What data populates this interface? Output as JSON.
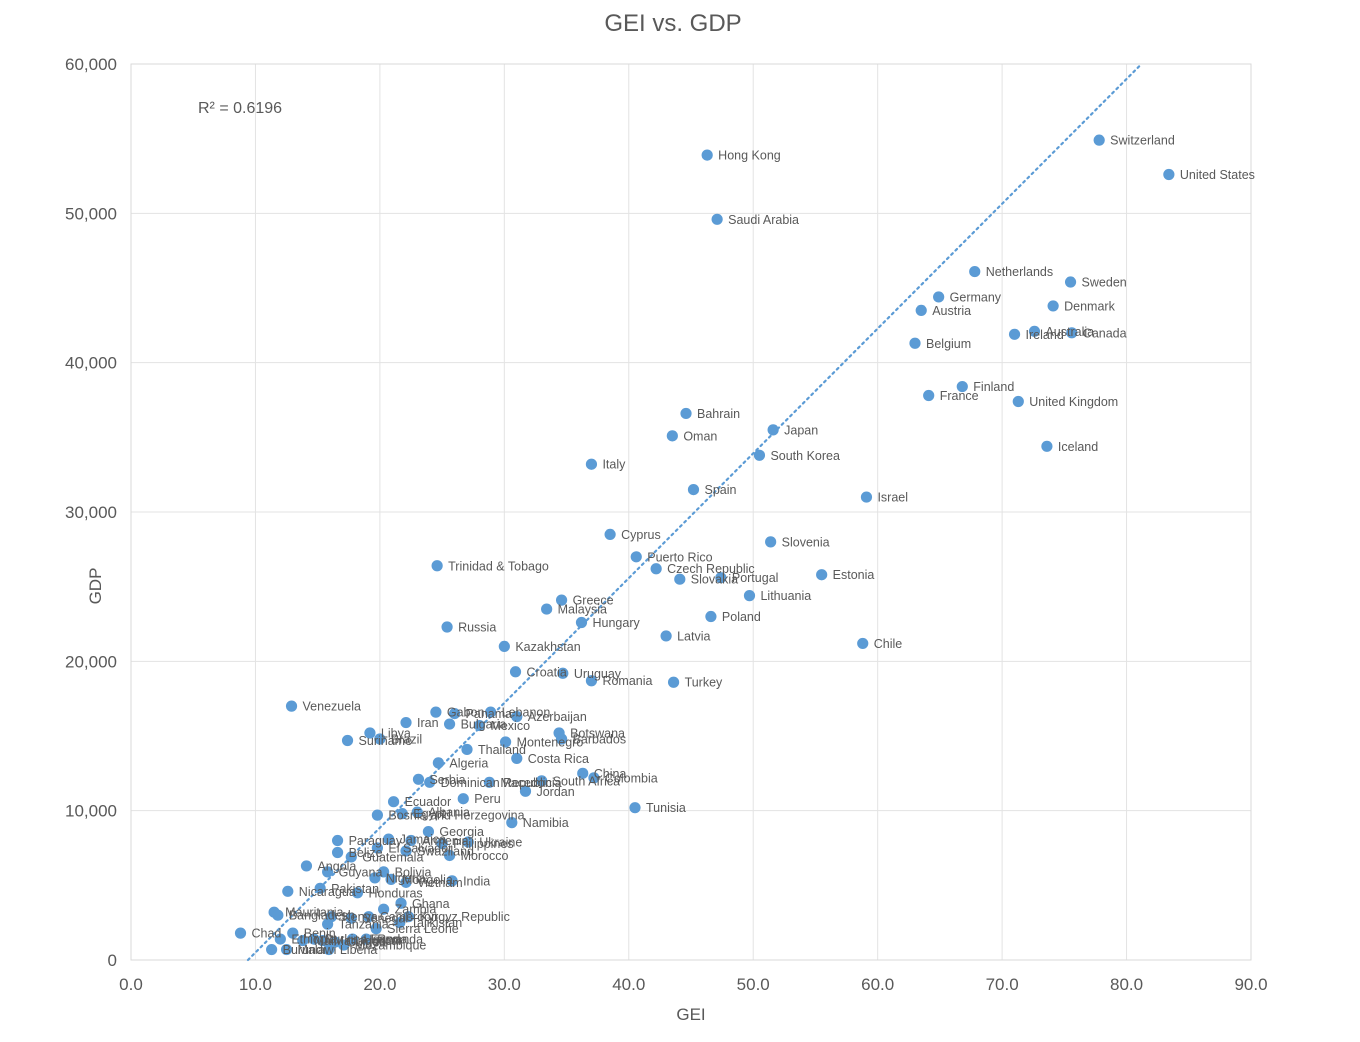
{
  "chart_data": {
    "type": "scatter",
    "title": "GEI vs. GDP",
    "xlabel": "GEI",
    "ylabel": "GDP",
    "xlim": [
      0,
      90
    ],
    "ylim": [
      0,
      60000
    ],
    "x_ticks": [
      "0.0",
      "10.0",
      "20.0",
      "30.0",
      "40.0",
      "50.0",
      "60.0",
      "70.0",
      "80.0",
      "90.0"
    ],
    "y_ticks": [
      "0",
      "10,000",
      "20,000",
      "30,000",
      "40,000",
      "50,000",
      "60,000"
    ],
    "grid": true,
    "r_squared_label": "R² = 0.6196",
    "trendline": {
      "type": "linear",
      "dotted": true,
      "x": [
        9.4,
        81.2
      ],
      "y": [
        0,
        60000
      ]
    },
    "marker_color": "#5b9bd5",
    "points": [
      {
        "label": "Switzerland",
        "x": 77.8,
        "y": 54900
      },
      {
        "label": "United States",
        "x": 83.4,
        "y": 52600
      },
      {
        "label": "Hong Kong",
        "x": 46.3,
        "y": 53900
      },
      {
        "label": "Saudi Arabia",
        "x": 47.1,
        "y": 49600
      },
      {
        "label": "Netherlands",
        "x": 67.8,
        "y": 46100
      },
      {
        "label": "Sweden",
        "x": 75.5,
        "y": 45400
      },
      {
        "label": "Germany",
        "x": 64.9,
        "y": 44400
      },
      {
        "label": "Denmark",
        "x": 74.1,
        "y": 43800
      },
      {
        "label": "Austria",
        "x": 63.5,
        "y": 43500
      },
      {
        "label": "Ireland",
        "x": 71.0,
        "y": 41900
      },
      {
        "label": "Australia",
        "x": 72.6,
        "y": 42100
      },
      {
        "label": "Canada",
        "x": 75.6,
        "y": 42000
      },
      {
        "label": "Belgium",
        "x": 63.0,
        "y": 41300
      },
      {
        "label": "Finland",
        "x": 66.8,
        "y": 38400
      },
      {
        "label": "France",
        "x": 64.1,
        "y": 37800
      },
      {
        "label": "United Kingdom",
        "x": 71.3,
        "y": 37400
      },
      {
        "label": "Iceland",
        "x": 73.6,
        "y": 34400
      },
      {
        "label": "Bahrain",
        "x": 44.6,
        "y": 36600
      },
      {
        "label": "Oman",
        "x": 43.5,
        "y": 35100
      },
      {
        "label": "Japan",
        "x": 51.6,
        "y": 35500
      },
      {
        "label": "South Korea",
        "x": 50.5,
        "y": 33800
      },
      {
        "label": "Italy",
        "x": 37.0,
        "y": 33200
      },
      {
        "label": "Spain",
        "x": 45.2,
        "y": 31500
      },
      {
        "label": "Israel",
        "x": 59.1,
        "y": 31000
      },
      {
        "label": "Cyprus",
        "x": 38.5,
        "y": 28500
      },
      {
        "label": "Slovenia",
        "x": 51.4,
        "y": 28000
      },
      {
        "label": "Puerto Rico",
        "x": 40.6,
        "y": 27000
      },
      {
        "label": "Czech Republic",
        "x": 42.2,
        "y": 26200
      },
      {
        "label": "Slovakia",
        "x": 44.1,
        "y": 25500
      },
      {
        "label": "Portugal",
        "x": 47.4,
        "y": 25600
      },
      {
        "label": "Estonia",
        "x": 55.5,
        "y": 25800
      },
      {
        "label": "Trinidad & Tobago",
        "x": 24.6,
        "y": 26400
      },
      {
        "label": "Lithuania",
        "x": 49.7,
        "y": 24400
      },
      {
        "label": "Greece",
        "x": 34.6,
        "y": 24100
      },
      {
        "label": "Malaysia",
        "x": 33.4,
        "y": 23500
      },
      {
        "label": "Hungary",
        "x": 36.2,
        "y": 22600
      },
      {
        "label": "Poland",
        "x": 46.6,
        "y": 23000
      },
      {
        "label": "Russia",
        "x": 25.4,
        "y": 22300
      },
      {
        "label": "Latvia",
        "x": 43.0,
        "y": 21700
      },
      {
        "label": "Chile",
        "x": 58.8,
        "y": 21200
      },
      {
        "label": "Kazakhstan",
        "x": 30.0,
        "y": 21000
      },
      {
        "label": "Croatia",
        "x": 30.9,
        "y": 19300
      },
      {
        "label": "Uruguay",
        "x": 34.7,
        "y": 19200
      },
      {
        "label": "Romania",
        "x": 37.0,
        "y": 18700
      },
      {
        "label": "Turkey",
        "x": 43.6,
        "y": 18600
      },
      {
        "label": "Venezuela",
        "x": 12.9,
        "y": 17000
      },
      {
        "label": "Gabon",
        "x": 24.5,
        "y": 16600
      },
      {
        "label": "Panama",
        "x": 26.0,
        "y": 16500
      },
      {
        "label": "Lebanon",
        "x": 28.9,
        "y": 16600
      },
      {
        "label": "Azerbaijan",
        "x": 31.0,
        "y": 16300
      },
      {
        "label": "Iran",
        "x": 22.1,
        "y": 15900
      },
      {
        "label": "Bulgaria",
        "x": 25.6,
        "y": 15800
      },
      {
        "label": "Mexico",
        "x": 28.0,
        "y": 15700
      },
      {
        "label": "Libya",
        "x": 19.2,
        "y": 15200
      },
      {
        "label": "Suriname",
        "x": 17.4,
        "y": 14700
      },
      {
        "label": "Brazil",
        "x": 20.0,
        "y": 14800
      },
      {
        "label": "Botswana",
        "x": 34.4,
        "y": 15200
      },
      {
        "label": "Montenegro",
        "x": 30.1,
        "y": 14600
      },
      {
        "label": "Barbados",
        "x": 34.6,
        "y": 14800
      },
      {
        "label": "Thailand",
        "x": 27.0,
        "y": 14100
      },
      {
        "label": "Costa Rica",
        "x": 31.0,
        "y": 13500
      },
      {
        "label": "Algeria",
        "x": 24.7,
        "y": 13200
      },
      {
        "label": "Serbia",
        "x": 23.1,
        "y": 12100
      },
      {
        "label": "Dominican Republic",
        "x": 24.0,
        "y": 11900
      },
      {
        "label": "Macedonia",
        "x": 28.8,
        "y": 11900
      },
      {
        "label": "South Africa",
        "x": 33.0,
        "y": 12000
      },
      {
        "label": "China",
        "x": 36.3,
        "y": 12500
      },
      {
        "label": "Colombia",
        "x": 37.2,
        "y": 12200
      },
      {
        "label": "Jordan",
        "x": 31.7,
        "y": 11300
      },
      {
        "label": "Ecuador",
        "x": 21.1,
        "y": 10600
      },
      {
        "label": "Peru",
        "x": 26.7,
        "y": 10800
      },
      {
        "label": "Tunisia",
        "x": 40.5,
        "y": 10200
      },
      {
        "label": "Bosnia and Herzegovina",
        "x": 19.8,
        "y": 9700
      },
      {
        "label": "Egypt",
        "x": 21.8,
        "y": 9800
      },
      {
        "label": "Albania",
        "x": 23.0,
        "y": 9900
      },
      {
        "label": "Namibia",
        "x": 30.6,
        "y": 9200
      },
      {
        "label": "Georgia",
        "x": 23.9,
        "y": 8600
      },
      {
        "label": "Paraguay",
        "x": 16.6,
        "y": 8000
      },
      {
        "label": "Jamaica",
        "x": 20.7,
        "y": 8100
      },
      {
        "label": "Armenia",
        "x": 22.5,
        "y": 8000
      },
      {
        "label": "Philippines",
        "x": 25.0,
        "y": 7800
      },
      {
        "label": "Ukraine",
        "x": 27.1,
        "y": 7900
      },
      {
        "label": "Belize",
        "x": 16.6,
        "y": 7200
      },
      {
        "label": "El Salvador",
        "x": 19.8,
        "y": 7500
      },
      {
        "label": "Guatemala",
        "x": 17.7,
        "y": 6900
      },
      {
        "label": "Swaziland",
        "x": 22.1,
        "y": 7300
      },
      {
        "label": "Morocco",
        "x": 25.6,
        "y": 7000
      },
      {
        "label": "Angola",
        "x": 14.1,
        "y": 6300
      },
      {
        "label": "Guyana",
        "x": 15.8,
        "y": 5900
      },
      {
        "label": "Bolivia",
        "x": 20.3,
        "y": 5900
      },
      {
        "label": "Nigeria",
        "x": 19.6,
        "y": 5500
      },
      {
        "label": "Mongolia",
        "x": 20.9,
        "y": 5400
      },
      {
        "label": "Vietnam",
        "x": 22.1,
        "y": 5200
      },
      {
        "label": "India",
        "x": 25.8,
        "y": 5300
      },
      {
        "label": "Pakistan",
        "x": 15.2,
        "y": 4800
      },
      {
        "label": "Nicaragua",
        "x": 12.6,
        "y": 4600
      },
      {
        "label": "Honduras",
        "x": 18.2,
        "y": 4500
      },
      {
        "label": "Ghana",
        "x": 21.7,
        "y": 3800
      },
      {
        "label": "Mauritania",
        "x": 11.5,
        "y": 3200
      },
      {
        "label": "Bangladesh",
        "x": 11.8,
        "y": 3000
      },
      {
        "label": "Zambia",
        "x": 20.3,
        "y": 3400
      },
      {
        "label": "Kenya",
        "x": 16.1,
        "y": 2900
      },
      {
        "label": "Senegal",
        "x": 17.7,
        "y": 2800
      },
      {
        "label": "Cameroon",
        "x": 19.1,
        "y": 2900
      },
      {
        "label": "Kyrgyz Republic",
        "x": 22.3,
        "y": 2900
      },
      {
        "label": "Tanzania",
        "x": 15.8,
        "y": 2400
      },
      {
        "label": "Tajikistan",
        "x": 21.6,
        "y": 2500
      },
      {
        "label": "Sierra Leone",
        "x": 19.7,
        "y": 2100
      },
      {
        "label": "Chad",
        "x": 8.8,
        "y": 1800
      },
      {
        "label": "Benin",
        "x": 13.0,
        "y": 1800
      },
      {
        "label": "Ethiopia",
        "x": 12.0,
        "y": 1400
      },
      {
        "label": "Mali",
        "x": 13.8,
        "y": 1300
      },
      {
        "label": "Burkina Faso",
        "x": 14.7,
        "y": 1400
      },
      {
        "label": "Madagascar",
        "x": 15.4,
        "y": 1300
      },
      {
        "label": "Guinea",
        "x": 16.4,
        "y": 1200
      },
      {
        "label": "Rwanda",
        "x": 18.9,
        "y": 1400
      },
      {
        "label": "Uganda",
        "x": 17.8,
        "y": 1400
      },
      {
        "label": "Mozambique",
        "x": 17.1,
        "y": 1000
      },
      {
        "label": "Burundi",
        "x": 11.3,
        "y": 700
      },
      {
        "label": "Malawi",
        "x": 12.5,
        "y": 700
      },
      {
        "label": "Liberia",
        "x": 15.9,
        "y": 700
      }
    ]
  }
}
